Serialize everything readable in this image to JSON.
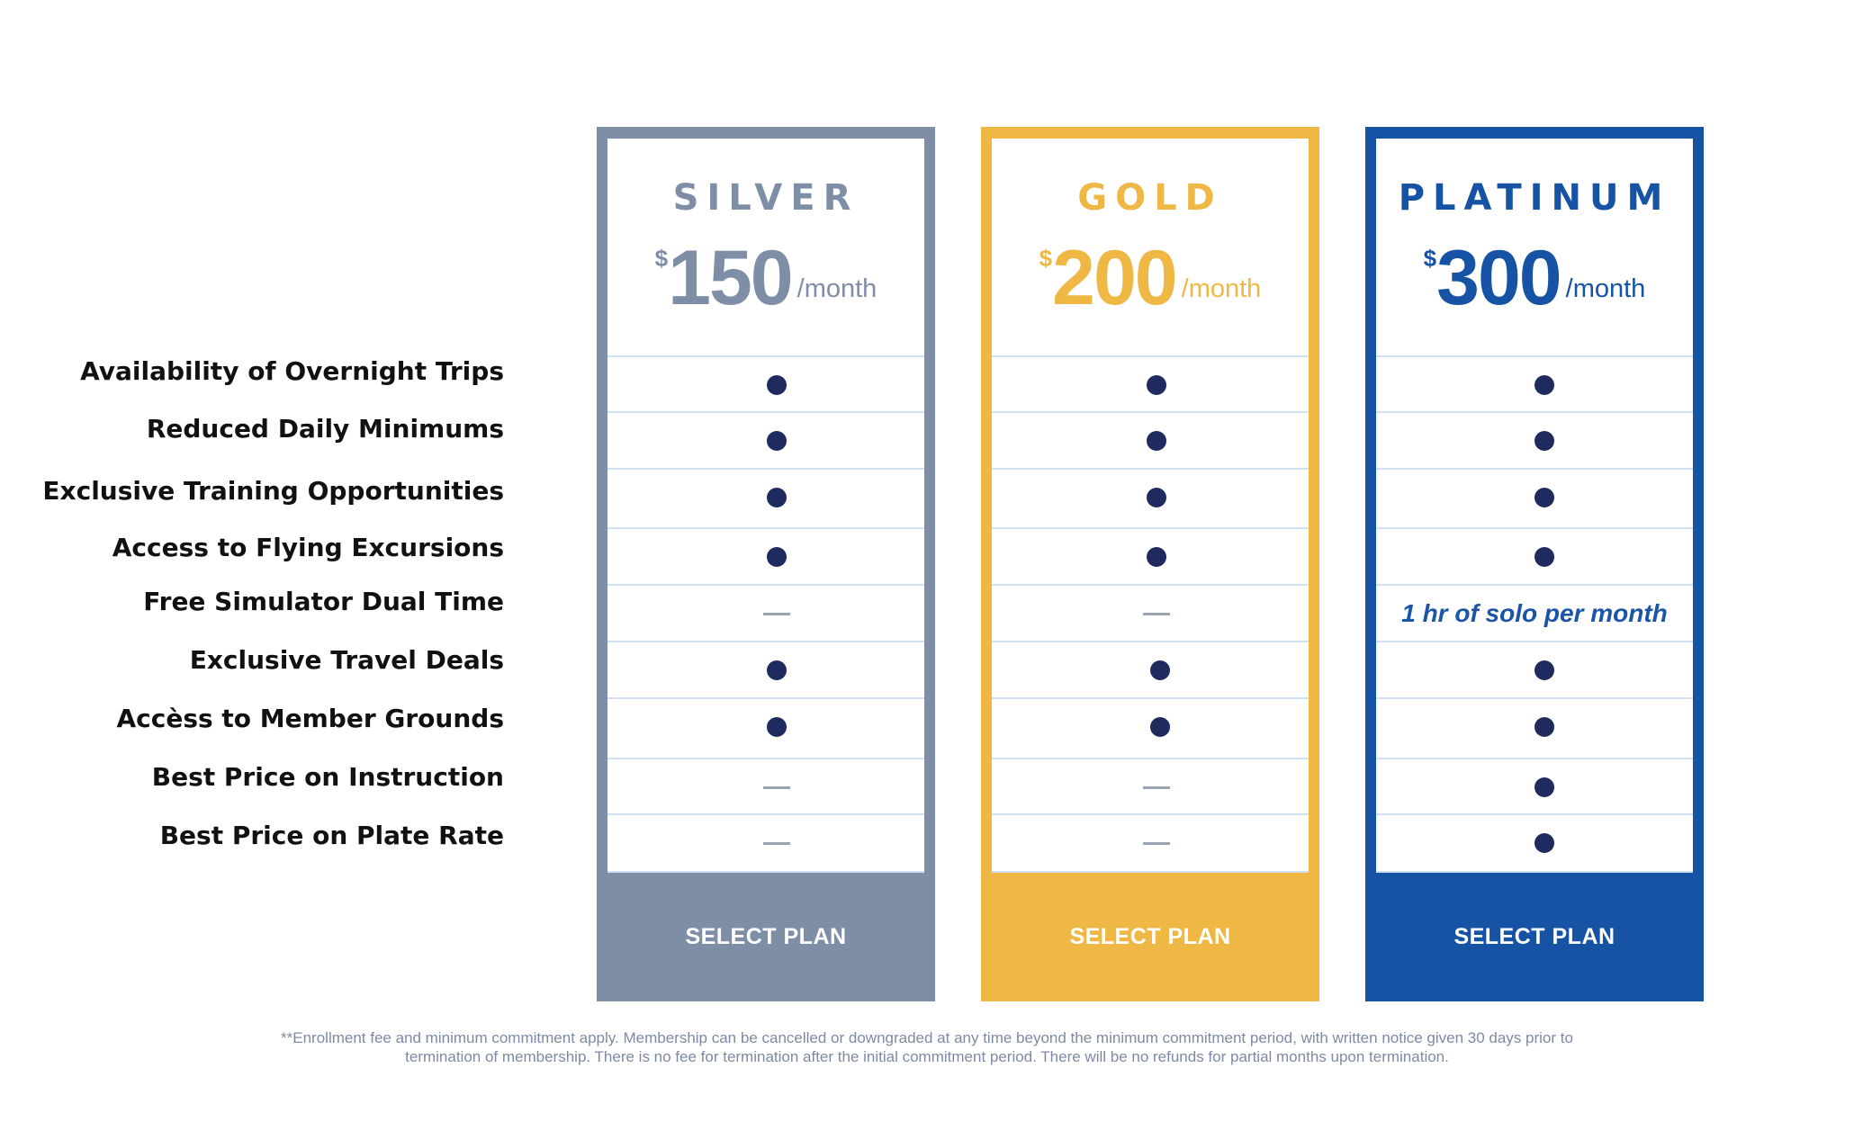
{
  "features": [
    "Availability of Overnight Trips",
    "Reduced Daily Minimums",
    "Exclusive Training Opportunities",
    "Access to Flying Excursions",
    "Free Simulator Dual Time",
    "Exclusive Travel Deals",
    "Accèss to Member Grounds",
    "Best Price on Instruction",
    "Best Price on Plate Rate"
  ],
  "plans": [
    {
      "name": "SILVER",
      "currency": "$",
      "amount": "150",
      "period": "/month",
      "color": "#7f8ea7",
      "button_label": "SELECT PLAN",
      "features": [
        "included",
        "included",
        "included",
        "included",
        "not-included",
        "included",
        "included",
        "not-included",
        "not-included"
      ]
    },
    {
      "name": "GOLD",
      "currency": "$",
      "amount": "200",
      "period": "/month",
      "color": "#efb844",
      "button_label": "SELECT PLAN",
      "features": [
        "included",
        "included",
        "included",
        "included",
        "not-included",
        "included",
        "included",
        "not-included",
        "not-included"
      ]
    },
    {
      "name": "PLATINUM",
      "currency": "$",
      "amount": "300",
      "period": "/month",
      "color": "#1753a5",
      "button_label": "SELECT PLAN",
      "features": [
        "included",
        "included",
        "included",
        "included",
        "1 hr of solo per month",
        "included",
        "included",
        "included",
        "included"
      ]
    }
  ],
  "colors": {
    "dot": "#1f2b5e",
    "dash": "#9aa3b4",
    "row_divider": "#cfe1f3",
    "note_text": "#1a55a8",
    "footnote_text": "#7e8aa3"
  },
  "footnote": {
    "line1": "**Enrollment fee and minimum commitment apply. Membership can be cancelled or downgraded at any time beyond the minimum commitment period, with written notice given 30 days prior to",
    "line2": "termination of membership. There is no fee for termination after the initial commitment period. There will be no refunds for partial months upon termination."
  }
}
